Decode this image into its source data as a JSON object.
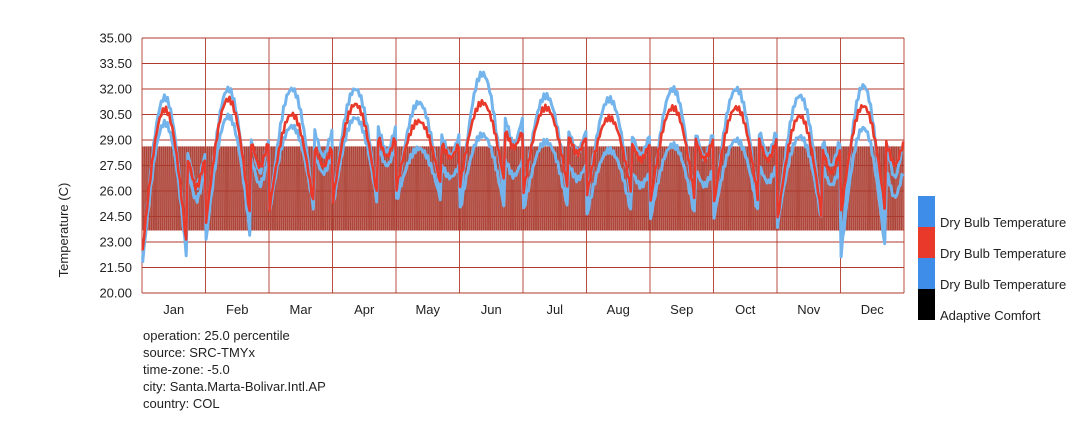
{
  "chart_data": {
    "type": "line",
    "ylabel": "Temperature (C)",
    "xlabel": "",
    "ylim": [
      20.0,
      35.0
    ],
    "yticks": [
      "35.00",
      "33.50",
      "32.00",
      "30.50",
      "29.00",
      "27.50",
      "26.00",
      "24.50",
      "23.00",
      "21.50",
      "20.00"
    ],
    "months": [
      "Jan",
      "Feb",
      "Mar",
      "Apr",
      "May",
      "Jun",
      "Jul",
      "Aug",
      "Sep",
      "Oct",
      "Nov",
      "Dec"
    ],
    "grid": true,
    "legend_position": "right",
    "series": [
      {
        "name": "Dry Bulb Temperature",
        "role": "upper",
        "color": "#74b4ec",
        "monthly_min": [
          22.0,
          23.2,
          24.8,
          25.3,
          25.5,
          25.3,
          25.6,
          25.3,
          24.6,
          24.9,
          24.1,
          22.4
        ],
        "monthly_max": [
          31.5,
          32.0,
          32.0,
          32.0,
          31.2,
          32.9,
          31.6,
          31.4,
          32.0,
          32.0,
          31.6,
          32.2
        ]
      },
      {
        "name": "Dry Bulb Temperature",
        "role": "median",
        "color": "#e8392a",
        "monthly_min": [
          22.5,
          24.2,
          25.0,
          25.5,
          26.2,
          26.4,
          26.0,
          25.8,
          25.4,
          25.3,
          24.3,
          24.7
        ],
        "monthly_max": [
          30.8,
          31.4,
          30.5,
          31.1,
          30.1,
          31.2,
          30.9,
          30.3,
          30.9,
          30.9,
          30.4,
          31.0
        ]
      },
      {
        "name": "Dry Bulb Temperature",
        "role": "lower",
        "color": "#74b4ec",
        "monthly_min": [
          21.8,
          23.1,
          24.8,
          25.2,
          25.4,
          24.9,
          24.9,
          24.6,
          24.4,
          24.5,
          24.0,
          22.3
        ],
        "monthly_max": [
          30.0,
          30.4,
          29.8,
          30.3,
          28.5,
          29.3,
          28.9,
          28.4,
          28.7,
          29.0,
          29.2,
          29.7
        ]
      }
    ],
    "comfort_band": {
      "name": "Adaptive Comfort",
      "color": "#a93a2e",
      "upper": 28.6,
      "lower": 23.7
    }
  },
  "legend": [
    {
      "label": "Dry Bulb Temperature",
      "color": "#3e8de8"
    },
    {
      "label": "Dry Bulb Temperature",
      "color": "#e8392a"
    },
    {
      "label": "Dry Bulb Temperature",
      "color": "#3e8de8"
    },
    {
      "label": "Adaptive Comfort",
      "color": "#000000"
    }
  ],
  "info": {
    "operation": "operation: 25.0 percentile",
    "source": "source: SRC-TMYx",
    "timezone": "time-zone: -5.0",
    "city": "city: Santa.Marta-Bolivar.Intl.AP",
    "country": "country: COL"
  },
  "colors": {
    "grid": "#b03a2e",
    "axis_text": "#333333"
  }
}
